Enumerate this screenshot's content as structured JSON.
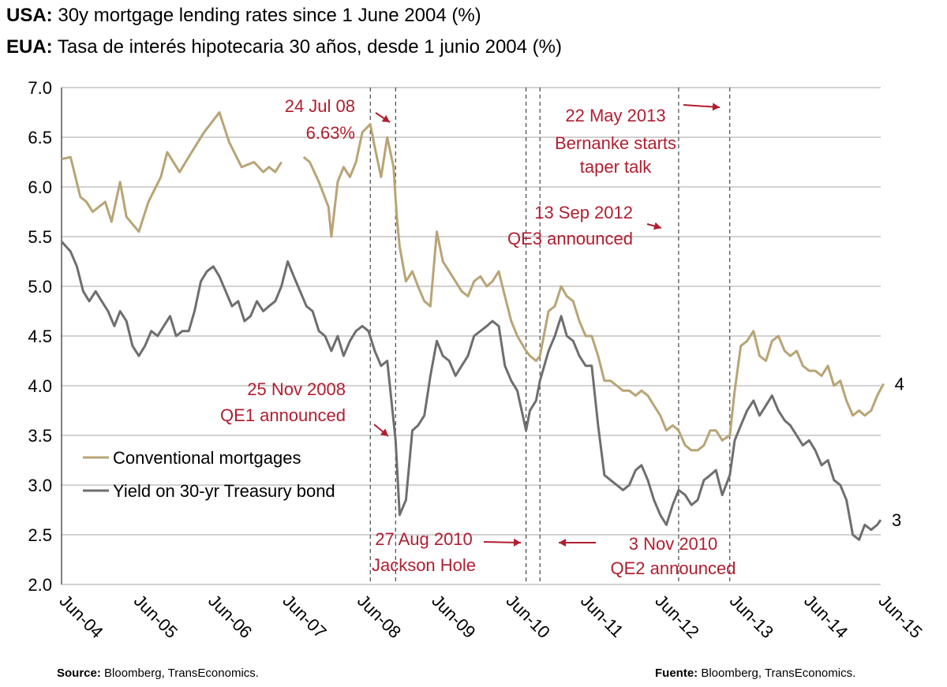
{
  "title_en": {
    "bold": "USA:",
    "text": "30y mortgage lending rates  since 1 June 2004 (%)"
  },
  "title_es": {
    "bold": "EUA:",
    "text": "Tasa de interés hipotecaria 30 años, desde 1 junio 2004 (%)"
  },
  "footer_left": {
    "bold": "Source:",
    "text": "Bloomberg, TransEconomics."
  },
  "footer_right": {
    "bold": "Fuente:",
    "text": "Bloomberg, TransEconomics."
  },
  "colors": {
    "mortgage": "#b8a475",
    "treasury": "#6e6e6e",
    "annotation": "#b01e30",
    "grid": "#a6a6a6"
  },
  "chart_data": {
    "type": "line",
    "ylim": [
      2.0,
      7.0
    ],
    "yticks": [
      2.0,
      2.5,
      3.0,
      3.5,
      4.0,
      4.5,
      5.0,
      5.5,
      6.0,
      6.5,
      7.0
    ],
    "ytick_labels": [
      "2.0",
      "2.5",
      "3.0",
      "3.5",
      "4.0",
      "4.5",
      "5.0",
      "5.5",
      "6.0",
      "6.5",
      "7.0"
    ],
    "xlim": [
      "2004-06",
      "2015-06"
    ],
    "xticks": [
      "2004-06",
      "2005-06",
      "2006-06",
      "2007-06",
      "2008-06",
      "2009-06",
      "2010-06",
      "2011-06",
      "2012-06",
      "2013-06",
      "2014-06",
      "2015-06"
    ],
    "xtick_labels": [
      "Jun-04",
      "Jun-05",
      "Jun-06",
      "Jun-07",
      "Jun-08",
      "Jun-09",
      "Jun-10",
      "Jun-11",
      "Jun-12",
      "Jun-13",
      "Jun-14",
      "Jun-15"
    ],
    "grid": "horizontal",
    "legend_position": "left",
    "series": [
      {
        "name": "Conventional mortgages",
        "color": "#b8a475",
        "points": [
          [
            "2004-06-01",
            6.28
          ],
          [
            "2004-07-15",
            6.3
          ],
          [
            "2004-09-01",
            5.9
          ],
          [
            "2004-10-01",
            5.85
          ],
          [
            "2004-11-01",
            5.75
          ],
          [
            "2005-01-01",
            5.85
          ],
          [
            "2005-02-01",
            5.65
          ],
          [
            "2005-03-15",
            6.05
          ],
          [
            "2005-04-15",
            5.7
          ],
          [
            "2005-06-15",
            5.55
          ],
          [
            "2005-08-01",
            5.85
          ],
          [
            "2005-10-01",
            6.1
          ],
          [
            "2005-11-01",
            6.35
          ],
          [
            "2006-01-01",
            6.15
          ],
          [
            "2006-03-01",
            6.35
          ],
          [
            "2006-05-01",
            6.55
          ],
          [
            "2006-07-15",
            6.75
          ],
          [
            "2006-09-01",
            6.45
          ],
          [
            "2006-11-01",
            6.2
          ],
          [
            "2007-01-01",
            6.25
          ],
          [
            "2007-02-15",
            6.15
          ],
          [
            "2007-03-15",
            6.2
          ],
          [
            "2007-04-15",
            6.15
          ],
          [
            "2007-05-15",
            6.25
          ],
          null,
          [
            "2007-09-01",
            6.3
          ],
          [
            "2007-10-01",
            6.25
          ],
          [
            "2007-11-15",
            6.05
          ],
          [
            "2008-01-01",
            5.8
          ],
          [
            "2008-01-15",
            5.5
          ],
          [
            "2008-02-15",
            6.05
          ],
          [
            "2008-03-15",
            6.2
          ],
          [
            "2008-04-15",
            6.1
          ],
          [
            "2008-05-15",
            6.25
          ],
          [
            "2008-06-15",
            6.55
          ],
          [
            "2008-07-24",
            6.63
          ],
          [
            "2008-08-15",
            6.4
          ],
          [
            "2008-09-15",
            6.1
          ],
          [
            "2008-10-15",
            6.5
          ],
          [
            "2008-11-15",
            6.2
          ],
          [
            "2008-12-01",
            5.7
          ],
          [
            "2008-12-15",
            5.4
          ],
          [
            "2009-01-15",
            5.05
          ],
          [
            "2009-02-15",
            5.15
          ],
          [
            "2009-03-15",
            5.0
          ],
          [
            "2009-04-15",
            4.85
          ],
          [
            "2009-05-15",
            4.8
          ],
          [
            "2009-06-15",
            5.55
          ],
          [
            "2009-07-15",
            5.25
          ],
          [
            "2009-08-15",
            5.15
          ],
          [
            "2009-09-15",
            5.05
          ],
          [
            "2009-10-15",
            4.95
          ],
          [
            "2009-11-15",
            4.9
          ],
          [
            "2009-12-15",
            5.05
          ],
          [
            "2010-01-15",
            5.1
          ],
          [
            "2010-02-15",
            5.0
          ],
          [
            "2010-03-15",
            5.05
          ],
          [
            "2010-04-15",
            5.15
          ],
          [
            "2010-05-15",
            4.9
          ],
          [
            "2010-06-15",
            4.65
          ],
          [
            "2010-07-15",
            4.5
          ],
          [
            "2010-08-27",
            4.35
          ],
          [
            "2010-09-15",
            4.3
          ],
          [
            "2010-10-15",
            4.25
          ],
          [
            "2010-11-03",
            4.3
          ],
          [
            "2010-12-15",
            4.75
          ],
          [
            "2011-01-15",
            4.8
          ],
          [
            "2011-02-15",
            5.0
          ],
          [
            "2011-03-15",
            4.9
          ],
          [
            "2011-04-15",
            4.85
          ],
          [
            "2011-05-15",
            4.65
          ],
          [
            "2011-06-15",
            4.5
          ],
          [
            "2011-07-15",
            4.5
          ],
          [
            "2011-08-15",
            4.3
          ],
          [
            "2011-09-15",
            4.05
          ],
          [
            "2011-10-15",
            4.05
          ],
          [
            "2011-11-15",
            4.0
          ],
          [
            "2011-12-15",
            3.95
          ],
          [
            "2012-01-15",
            3.95
          ],
          [
            "2012-02-15",
            3.9
          ],
          [
            "2012-03-15",
            3.95
          ],
          [
            "2012-04-15",
            3.9
          ],
          [
            "2012-05-15",
            3.8
          ],
          [
            "2012-06-15",
            3.7
          ],
          [
            "2012-07-15",
            3.55
          ],
          [
            "2012-08-15",
            3.6
          ],
          [
            "2012-09-13",
            3.55
          ],
          [
            "2012-10-15",
            3.4
          ],
          [
            "2012-11-15",
            3.35
          ],
          [
            "2012-12-15",
            3.35
          ],
          [
            "2013-01-15",
            3.4
          ],
          [
            "2013-02-15",
            3.55
          ],
          [
            "2013-03-15",
            3.55
          ],
          [
            "2013-04-15",
            3.45
          ],
          [
            "2013-05-22",
            3.5
          ],
          [
            "2013-06-15",
            3.95
          ],
          [
            "2013-07-15",
            4.4
          ],
          [
            "2013-08-15",
            4.45
          ],
          [
            "2013-09-15",
            4.55
          ],
          [
            "2013-10-15",
            4.3
          ],
          [
            "2013-11-15",
            4.25
          ],
          [
            "2013-12-15",
            4.45
          ],
          [
            "2014-01-15",
            4.5
          ],
          [
            "2014-02-15",
            4.35
          ],
          [
            "2014-03-15",
            4.3
          ],
          [
            "2014-04-15",
            4.35
          ],
          [
            "2014-05-15",
            4.2
          ],
          [
            "2014-06-15",
            4.15
          ],
          [
            "2014-07-15",
            4.15
          ],
          [
            "2014-08-15",
            4.1
          ],
          [
            "2014-09-15",
            4.2
          ],
          [
            "2014-10-15",
            4.0
          ],
          [
            "2014-11-15",
            4.05
          ],
          [
            "2014-12-15",
            3.85
          ],
          [
            "2015-01-15",
            3.7
          ],
          [
            "2015-02-15",
            3.75
          ],
          [
            "2015-03-15",
            3.7
          ],
          [
            "2015-04-15",
            3.75
          ],
          [
            "2015-05-15",
            3.9
          ],
          [
            "2015-06-15",
            4.02
          ]
        ]
      },
      {
        "name": "Yield on 30-yr Treasury bond",
        "color": "#6e6e6e",
        "points": [
          [
            "2004-06-01",
            5.45
          ],
          [
            "2004-07-15",
            5.35
          ],
          [
            "2004-08-15",
            5.2
          ],
          [
            "2004-09-15",
            4.95
          ],
          [
            "2004-10-15",
            4.85
          ],
          [
            "2004-11-15",
            4.95
          ],
          [
            "2004-12-15",
            4.85
          ],
          [
            "2005-01-15",
            4.75
          ],
          [
            "2005-02-15",
            4.6
          ],
          [
            "2005-03-15",
            4.75
          ],
          [
            "2005-04-15",
            4.65
          ],
          [
            "2005-05-15",
            4.4
          ],
          [
            "2005-06-15",
            4.3
          ],
          [
            "2005-07-15",
            4.4
          ],
          [
            "2005-08-15",
            4.55
          ],
          [
            "2005-09-15",
            4.5
          ],
          [
            "2005-10-15",
            4.6
          ],
          [
            "2005-11-15",
            4.7
          ],
          [
            "2005-12-15",
            4.5
          ],
          [
            "2006-01-15",
            4.55
          ],
          [
            "2006-02-15",
            4.55
          ],
          [
            "2006-03-15",
            4.75
          ],
          [
            "2006-04-15",
            5.05
          ],
          [
            "2006-05-15",
            5.15
          ],
          [
            "2006-06-15",
            5.2
          ],
          [
            "2006-07-15",
            5.1
          ],
          [
            "2006-08-15",
            4.95
          ],
          [
            "2006-09-15",
            4.8
          ],
          [
            "2006-10-15",
            4.85
          ],
          [
            "2006-11-15",
            4.65
          ],
          [
            "2006-12-15",
            4.7
          ],
          [
            "2007-01-15",
            4.85
          ],
          [
            "2007-02-15",
            4.75
          ],
          [
            "2007-03-15",
            4.8
          ],
          [
            "2007-04-15",
            4.85
          ],
          [
            "2007-05-15",
            5.0
          ],
          [
            "2007-06-15",
            5.25
          ],
          [
            "2007-07-15",
            5.1
          ],
          [
            "2007-08-15",
            4.95
          ],
          [
            "2007-09-15",
            4.8
          ],
          [
            "2007-10-15",
            4.75
          ],
          [
            "2007-11-15",
            4.55
          ],
          [
            "2007-12-15",
            4.5
          ],
          [
            "2008-01-15",
            4.35
          ],
          [
            "2008-02-15",
            4.5
          ],
          [
            "2008-03-15",
            4.3
          ],
          [
            "2008-04-15",
            4.45
          ],
          [
            "2008-05-15",
            4.55
          ],
          [
            "2008-06-15",
            4.6
          ],
          [
            "2008-07-15",
            4.55
          ],
          [
            "2008-08-15",
            4.35
          ],
          [
            "2008-09-15",
            4.2
          ],
          [
            "2008-10-15",
            4.25
          ],
          [
            "2008-11-25",
            3.45
          ],
          [
            "2008-12-15",
            2.7
          ],
          [
            "2009-01-15",
            2.85
          ],
          [
            "2009-02-15",
            3.55
          ],
          [
            "2009-03-15",
            3.6
          ],
          [
            "2009-04-15",
            3.7
          ],
          [
            "2009-05-15",
            4.1
          ],
          [
            "2009-06-15",
            4.45
          ],
          [
            "2009-07-15",
            4.3
          ],
          [
            "2009-08-15",
            4.25
          ],
          [
            "2009-09-15",
            4.1
          ],
          [
            "2009-10-15",
            4.2
          ],
          [
            "2009-11-15",
            4.3
          ],
          [
            "2009-12-15",
            4.5
          ],
          [
            "2010-01-15",
            4.55
          ],
          [
            "2010-02-15",
            4.6
          ],
          [
            "2010-03-15",
            4.65
          ],
          [
            "2010-04-15",
            4.6
          ],
          [
            "2010-05-15",
            4.2
          ],
          [
            "2010-06-15",
            4.05
          ],
          [
            "2010-07-15",
            3.95
          ],
          [
            "2010-08-27",
            3.55
          ],
          [
            "2010-09-15",
            3.75
          ],
          [
            "2010-10-15",
            3.85
          ],
          [
            "2010-11-03",
            4.05
          ],
          [
            "2010-12-15",
            4.35
          ],
          [
            "2011-01-15",
            4.5
          ],
          [
            "2011-02-15",
            4.7
          ],
          [
            "2011-03-15",
            4.5
          ],
          [
            "2011-04-15",
            4.45
          ],
          [
            "2011-05-15",
            4.3
          ],
          [
            "2011-06-15",
            4.2
          ],
          [
            "2011-07-15",
            4.2
          ],
          [
            "2011-08-15",
            3.6
          ],
          [
            "2011-09-15",
            3.1
          ],
          [
            "2011-10-15",
            3.05
          ],
          [
            "2011-11-15",
            3.0
          ],
          [
            "2011-12-15",
            2.95
          ],
          [
            "2012-01-15",
            3.0
          ],
          [
            "2012-02-15",
            3.15
          ],
          [
            "2012-03-15",
            3.2
          ],
          [
            "2012-04-15",
            3.05
          ],
          [
            "2012-05-15",
            2.85
          ],
          [
            "2012-06-15",
            2.7
          ],
          [
            "2012-07-15",
            2.6
          ],
          [
            "2012-08-15",
            2.8
          ],
          [
            "2012-09-13",
            2.95
          ],
          [
            "2012-10-15",
            2.9
          ],
          [
            "2012-11-15",
            2.8
          ],
          [
            "2012-12-15",
            2.85
          ],
          [
            "2013-01-15",
            3.05
          ],
          [
            "2013-02-15",
            3.1
          ],
          [
            "2013-03-15",
            3.15
          ],
          [
            "2013-04-15",
            2.9
          ],
          [
            "2013-05-22",
            3.1
          ],
          [
            "2013-06-15",
            3.45
          ],
          [
            "2013-07-15",
            3.6
          ],
          [
            "2013-08-15",
            3.75
          ],
          [
            "2013-09-15",
            3.85
          ],
          [
            "2013-10-15",
            3.7
          ],
          [
            "2013-11-15",
            3.8
          ],
          [
            "2013-12-15",
            3.9
          ],
          [
            "2014-01-15",
            3.75
          ],
          [
            "2014-02-15",
            3.65
          ],
          [
            "2014-03-15",
            3.6
          ],
          [
            "2014-04-15",
            3.5
          ],
          [
            "2014-05-15",
            3.4
          ],
          [
            "2014-06-15",
            3.45
          ],
          [
            "2014-07-15",
            3.35
          ],
          [
            "2014-08-15",
            3.2
          ],
          [
            "2014-09-15",
            3.25
          ],
          [
            "2014-10-15",
            3.05
          ],
          [
            "2014-11-15",
            3.0
          ],
          [
            "2014-12-15",
            2.85
          ],
          [
            "2015-01-15",
            2.5
          ],
          [
            "2015-02-15",
            2.45
          ],
          [
            "2015-03-15",
            2.6
          ],
          [
            "2015-04-15",
            2.55
          ],
          [
            "2015-05-15",
            2.6
          ],
          [
            "2015-06-01",
            2.65
          ]
        ]
      }
    ],
    "end_labels": [
      {
        "series": 0,
        "text": "4"
      },
      {
        "series": 1,
        "text": "3"
      }
    ],
    "event_lines": [
      {
        "date": "2008-07-24",
        "label": [
          "24 Jul 08",
          "6.63%"
        ]
      },
      {
        "date": "2008-11-25",
        "label": [
          "25 Nov 2008",
          "QE1 announced"
        ]
      },
      {
        "date": "2010-08-27",
        "label": [
          "27 Aug 2010",
          "Jackson Hole"
        ]
      },
      {
        "date": "2010-11-03",
        "label": [
          "3 Nov 2010",
          "QE2 announced"
        ]
      },
      {
        "date": "2012-09-13",
        "label": [
          "13 Sep 2012",
          "QE3 announced"
        ]
      },
      {
        "date": "2013-05-22",
        "label": [
          "22 May 2013",
          "Bernanke starts",
          "taper talk"
        ]
      }
    ]
  }
}
